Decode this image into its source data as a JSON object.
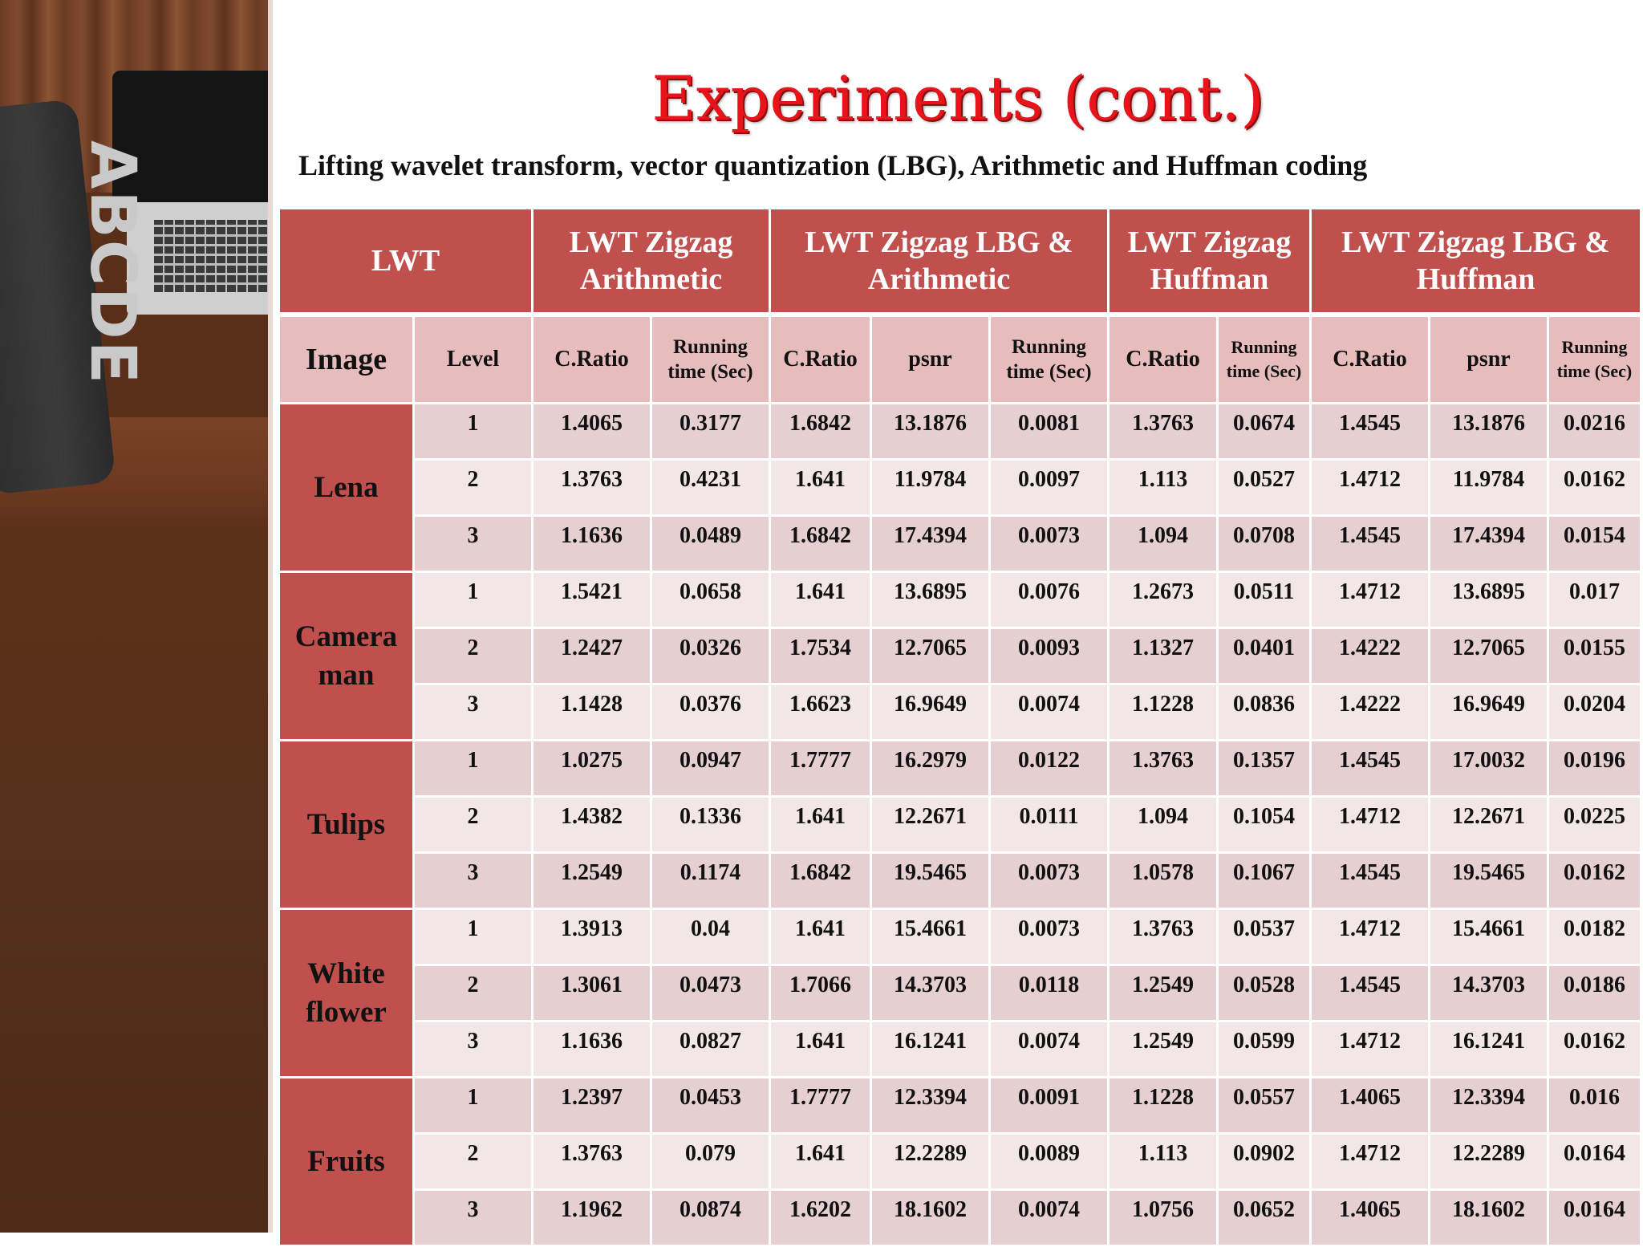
{
  "title": "Experiments (cont.)",
  "subtitle": "Lifting wavelet transform, vector quantization (LBG), Arithmetic and Huffman coding",
  "photo": {
    "pillow_text": "ABCDE"
  },
  "table": {
    "groups": [
      "LWT",
      "LWT Zigzag Arithmetic",
      "LWT Zigzag LBG & Arithmetic",
      "LWT Zigzag Huffman",
      "LWT Zigzag LBG & Huffman"
    ],
    "columns": [
      "Image",
      "Level",
      "C.Ratio",
      "Running time (Sec)",
      "C.Ratio",
      "psnr",
      "Running time (Sec)",
      "C.Ratio",
      "Running time (Sec)",
      "C.Ratio",
      "psnr",
      "Running time (Sec)"
    ],
    "images": [
      {
        "name": "Lena",
        "rows": [
          [
            "1",
            "1.4065",
            "0.3177",
            "1.6842",
            "13.1876",
            "0.0081",
            "1.3763",
            "0.0674",
            "1.4545",
            "13.1876",
            "0.0216"
          ],
          [
            "2",
            "1.3763",
            "0.4231",
            "1.641",
            "11.9784",
            "0.0097",
            "1.113",
            "0.0527",
            "1.4712",
            "11.9784",
            "0.0162"
          ],
          [
            "3",
            "1.1636",
            "0.0489",
            "1.6842",
            "17.4394",
            "0.0073",
            "1.094",
            "0.0708",
            "1.4545",
            "17.4394",
            "0.0154"
          ]
        ]
      },
      {
        "name": "Camera man",
        "rows": [
          [
            "1",
            "1.5421",
            "0.0658",
            "1.641",
            "13.6895",
            "0.0076",
            "1.2673",
            "0.0511",
            "1.4712",
            "13.6895",
            "0.017"
          ],
          [
            "2",
            "1.2427",
            "0.0326",
            "1.7534",
            "12.7065",
            "0.0093",
            "1.1327",
            "0.0401",
            "1.4222",
            "12.7065",
            "0.0155"
          ],
          [
            "3",
            "1.1428",
            "0.0376",
            "1.6623",
            "16.9649",
            "0.0074",
            "1.1228",
            "0.0836",
            "1.4222",
            "16.9649",
            "0.0204"
          ]
        ]
      },
      {
        "name": "Tulips",
        "rows": [
          [
            "1",
            "1.0275",
            "0.0947",
            "1.7777",
            "16.2979",
            "0.0122",
            "1.3763",
            "0.1357",
            "1.4545",
            "17.0032",
            "0.0196"
          ],
          [
            "2",
            "1.4382",
            "0.1336",
            "1.641",
            "12.2671",
            "0.0111",
            "1.094",
            "0.1054",
            "1.4712",
            "12.2671",
            "0.0225"
          ],
          [
            "3",
            "1.2549",
            "0.1174",
            "1.6842",
            "19.5465",
            "0.0073",
            "1.0578",
            "0.1067",
            "1.4545",
            "19.5465",
            "0.0162"
          ]
        ]
      },
      {
        "name": "White flower",
        "rows": [
          [
            "1",
            "1.3913",
            "0.04",
            "1.641",
            "15.4661",
            "0.0073",
            "1.3763",
            "0.0537",
            "1.4712",
            "15.4661",
            "0.0182"
          ],
          [
            "2",
            "1.3061",
            "0.0473",
            "1.7066",
            "14.3703",
            "0.0118",
            "1.2549",
            "0.0528",
            "1.4545",
            "14.3703",
            "0.0186"
          ],
          [
            "3",
            "1.1636",
            "0.0827",
            "1.641",
            "16.1241",
            "0.0074",
            "1.2549",
            "0.0599",
            "1.4712",
            "16.1241",
            "0.0162"
          ]
        ]
      },
      {
        "name": "Fruits",
        "rows": [
          [
            "1",
            "1.2397",
            "0.0453",
            "1.7777",
            "12.3394",
            "0.0091",
            "1.1228",
            "0.0557",
            "1.4065",
            "12.3394",
            "0.016"
          ],
          [
            "2",
            "1.3763",
            "0.079",
            "1.641",
            "12.2289",
            "0.0089",
            "1.113",
            "0.0902",
            "1.4712",
            "12.2289",
            "0.0164"
          ],
          [
            "3",
            "1.1962",
            "0.0874",
            "1.6202",
            "18.1602",
            "0.0074",
            "1.0756",
            "0.0652",
            "1.4065",
            "18.1602",
            "0.0164"
          ]
        ]
      }
    ]
  }
}
